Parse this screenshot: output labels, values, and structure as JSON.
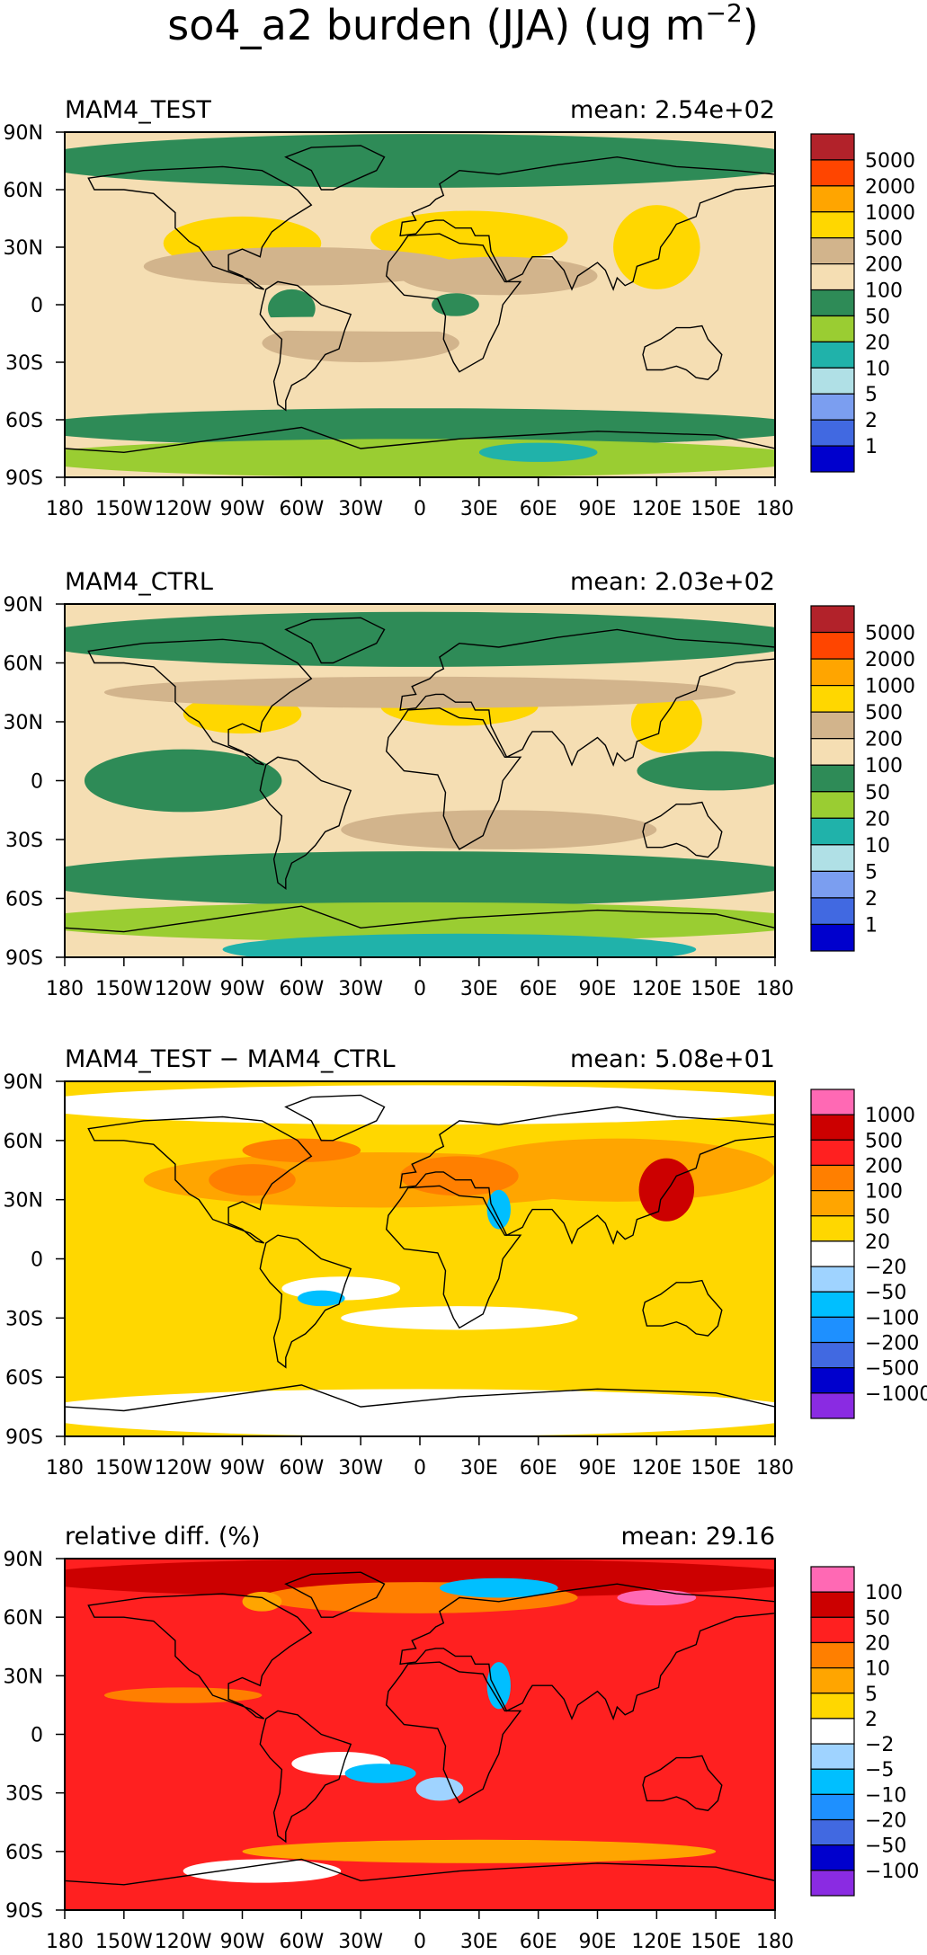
{
  "title": "so4_a2 burden (JJA) (ug m",
  "title_exp": "−2",
  "title_close": ")",
  "x_ticks": [
    "180",
    "150W",
    "120W",
    "90W",
    "60W",
    "30W",
    "0",
    "30E",
    "60E",
    "90E",
    "120E",
    "150E",
    "180"
  ],
  "y_ticks": [
    "90N",
    "60N",
    "30N",
    "0",
    "30S",
    "60S",
    "90S"
  ],
  "chart_data": [
    {
      "type": "heatmap",
      "name": "MAM4_TEST",
      "label": "MAM4_TEST",
      "mean": "mean: 2.54e+02",
      "mean_value": 254,
      "colorbar_labels": [
        "5000",
        "2000",
        "1000",
        "500",
        "200",
        "100",
        "50",
        "20",
        "10",
        "5",
        "2",
        "1"
      ],
      "colorbar_colors": [
        "#b2222a",
        "#ff4500",
        "#ffa500",
        "#ffd700",
        "#d2b48c",
        "#f5deb3",
        "#2e8b57",
        "#9acd32",
        "#20b2aa",
        "#b0e0e6",
        "#7b9ef0",
        "#4169e1",
        "#0000cd"
      ],
      "x_range": [
        -180,
        180
      ],
      "y_range": [
        -90,
        90
      ]
    },
    {
      "type": "heatmap",
      "name": "MAM4_CTRL",
      "label": "MAM4_CTRL",
      "mean": "mean: 2.03e+02",
      "mean_value": 203,
      "colorbar_labels": [
        "5000",
        "2000",
        "1000",
        "500",
        "200",
        "100",
        "50",
        "20",
        "10",
        "5",
        "2",
        "1"
      ],
      "colorbar_colors": [
        "#b2222a",
        "#ff4500",
        "#ffa500",
        "#ffd700",
        "#d2b48c",
        "#f5deb3",
        "#2e8b57",
        "#9acd32",
        "#20b2aa",
        "#b0e0e6",
        "#7b9ef0",
        "#4169e1",
        "#0000cd"
      ],
      "x_range": [
        -180,
        180
      ],
      "y_range": [
        -90,
        90
      ]
    },
    {
      "type": "heatmap",
      "name": "difference",
      "label": "MAM4_TEST − MAM4_CTRL",
      "mean": "mean: 5.08e+01",
      "mean_value": 50.8,
      "colorbar_labels": [
        "1000",
        "500",
        "200",
        "100",
        "50",
        "20",
        "−20",
        "−50",
        "−100",
        "−200",
        "−500",
        "−1000"
      ],
      "colorbar_colors": [
        "#ff69b4",
        "#cc0000",
        "#ff2020",
        "#ff7f00",
        "#ffa500",
        "#ffd700",
        "#ffffff",
        "#9fd3ff",
        "#00bfff",
        "#1e90ff",
        "#4169e1",
        "#0000cd",
        "#8a2be2"
      ],
      "x_range": [
        -180,
        180
      ],
      "y_range": [
        -90,
        90
      ]
    },
    {
      "type": "heatmap",
      "name": "relative-diff",
      "label": "relative diff. (%)",
      "mean": "mean: 29.16",
      "mean_value": 29.16,
      "colorbar_labels": [
        "100",
        "50",
        "20",
        "10",
        "5",
        "2",
        "−2",
        "−5",
        "−10",
        "−20",
        "−50",
        "−100"
      ],
      "colorbar_colors": [
        "#ff69b4",
        "#cc0000",
        "#ff2020",
        "#ff7f00",
        "#ffa500",
        "#ffd700",
        "#ffffff",
        "#9fd3ff",
        "#00bfff",
        "#1e90ff",
        "#4169e1",
        "#0000cd",
        "#8a2be2"
      ],
      "x_range": [
        -180,
        180
      ],
      "y_range": [
        -90,
        90
      ]
    }
  ]
}
